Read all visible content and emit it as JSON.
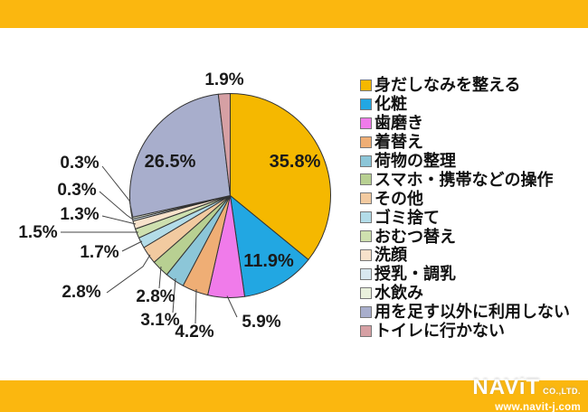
{
  "frame": {
    "band_color": "#FBB70F",
    "background": "#FFFFFF"
  },
  "chart_data": {
    "type": "pie",
    "title": "",
    "direction": "clockwise",
    "start_angle_deg": 0,
    "legend_position": "right",
    "slices": [
      {
        "label": "身だしなみを整える",
        "value": 35.8,
        "pct_label": "35.8%",
        "color": "#F5B800"
      },
      {
        "label": "化粧",
        "value": 11.9,
        "pct_label": "11.9%",
        "color": "#22A7E2"
      },
      {
        "label": "歯磨き",
        "value": 5.9,
        "pct_label": "5.9%",
        "color": "#F07BEA"
      },
      {
        "label": "着替え",
        "value": 4.2,
        "pct_label": "4.2%",
        "color": "#EFAE75"
      },
      {
        "label": "荷物の整理",
        "value": 3.1,
        "pct_label": "3.1%",
        "color": "#8CC6D8"
      },
      {
        "label": "スマホ・携帯などの操作",
        "value": 2.8,
        "pct_label": "2.8%",
        "color": "#B8D092"
      },
      {
        "label": "その他",
        "value": 2.8,
        "pct_label": "2.8%",
        "color": "#F2CAA0"
      },
      {
        "label": "ゴミ捨て",
        "value": 1.7,
        "pct_label": "1.7%",
        "color": "#B3DCE8"
      },
      {
        "label": "おむつ替え",
        "value": 1.5,
        "pct_label": "1.5%",
        "color": "#CEE0AF"
      },
      {
        "label": "洗顔",
        "value": 1.3,
        "pct_label": "1.3%",
        "color": "#F7E2CB"
      },
      {
        "label": "授乳・調乳",
        "value": 0.3,
        "pct_label": "0.3%",
        "color": "#D9E8F0"
      },
      {
        "label": "水飲み",
        "value": 0.3,
        "pct_label": "0.3%",
        "color": "#EAF1DD"
      },
      {
        "label": "用を足す以外に利用しない",
        "value": 26.5,
        "pct_label": "26.5%",
        "color": "#A8AECC"
      },
      {
        "label": "トイレに行かない",
        "value": 1.9,
        "pct_label": "1.9%",
        "color": "#D6A0A4"
      }
    ]
  },
  "footer": {
    "logo_text": "NAViT",
    "logo_suffix": "CO.,LTD.",
    "logo_url": "www.navit-j.com"
  }
}
